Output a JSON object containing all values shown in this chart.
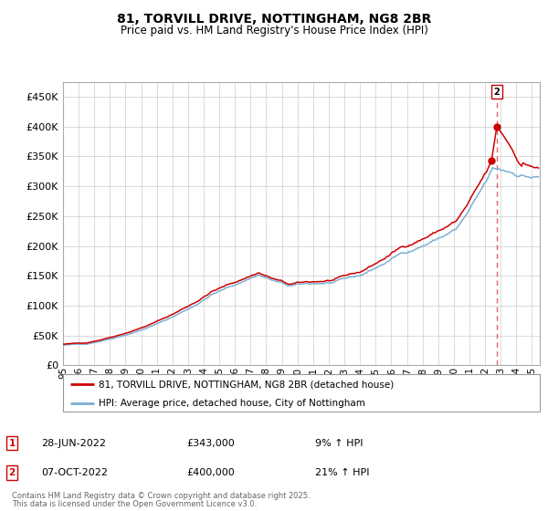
{
  "title_line1": "81, TORVILL DRIVE, NOTTINGHAM, NG8 2BR",
  "title_line2": "Price paid vs. HM Land Registry's House Price Index (HPI)",
  "ylabel_ticks": [
    "£0",
    "£50K",
    "£100K",
    "£150K",
    "£200K",
    "£250K",
    "£300K",
    "£350K",
    "£400K",
    "£450K"
  ],
  "ytick_values": [
    0,
    50000,
    100000,
    150000,
    200000,
    250000,
    300000,
    350000,
    400000,
    450000
  ],
  "ylim": [
    0,
    475000
  ],
  "xlim_start": 1995.0,
  "xlim_end": 2025.5,
  "x_tick_years": [
    1995,
    1996,
    1997,
    1998,
    1999,
    2000,
    2001,
    2002,
    2003,
    2004,
    2005,
    2006,
    2007,
    2008,
    2009,
    2010,
    2011,
    2012,
    2013,
    2014,
    2015,
    2016,
    2017,
    2018,
    2019,
    2020,
    2021,
    2022,
    2023,
    2024,
    2025
  ],
  "x_tick_labels": [
    "95",
    "96",
    "97",
    "98",
    "99",
    "00",
    "01",
    "02",
    "03",
    "04",
    "05",
    "06",
    "07",
    "08",
    "09",
    "10",
    "11",
    "12",
    "13",
    "14",
    "15",
    "16",
    "17",
    "18",
    "19",
    "20",
    "21",
    "22",
    "23",
    "24",
    "25"
  ],
  "red_line_color": "#cc0000",
  "blue_line_color": "#7bafd4",
  "marker_color": "#cc0000",
  "dashed_line_color": "#cc0000",
  "annotation1_date": "28-JUN-2022",
  "annotation1_price": "£343,000",
  "annotation1_hpi": "9% ↑ HPI",
  "annotation2_date": "07-OCT-2022",
  "annotation2_price": "£400,000",
  "annotation2_hpi": "21% ↑ HPI",
  "legend_line1": "81, TORVILL DRIVE, NOTTINGHAM, NG8 2BR (detached house)",
  "legend_line2": "HPI: Average price, detached house, City of Nottingham",
  "footer_line1": "Contains HM Land Registry data © Crown copyright and database right 2025.",
  "footer_line2": "This data is licensed under the Open Government Licence v3.0.",
  "background_color": "#ffffff",
  "grid_color": "#cccccc"
}
